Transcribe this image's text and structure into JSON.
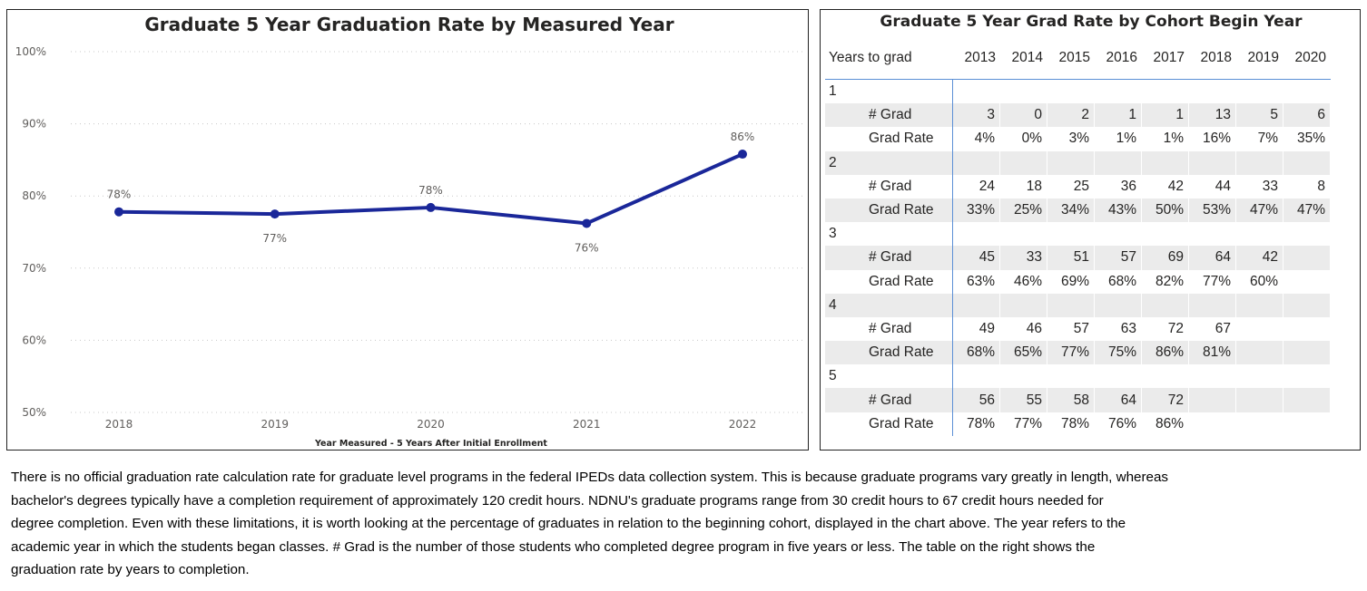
{
  "chart_data": {
    "type": "line",
    "title": "Graduate 5 Year Graduation Rate by Measured Year",
    "xlabel": "Year Measured - 5 Years After Initial Enrollment",
    "ylabel": "",
    "categories": [
      "2018",
      "2019",
      "2020",
      "2021",
      "2022"
    ],
    "values": [
      77.8,
      77.5,
      78.4,
      76.2,
      85.8
    ],
    "data_labels": [
      "78%",
      "77%",
      "78%",
      "76%",
      "86%"
    ],
    "label_positions": [
      "above",
      "below",
      "above",
      "below",
      "above"
    ],
    "ylim": [
      50,
      100
    ],
    "yticks": [
      "50%",
      "60%",
      "70%",
      "80%",
      "90%",
      "100%"
    ],
    "ytick_values": [
      50,
      60,
      70,
      80,
      90,
      100
    ],
    "grid": true,
    "line_color": "#1a2799"
  },
  "table": {
    "title": "Graduate 5 Year Grad Rate by Cohort Begin Year",
    "row_header": "Years to grad",
    "columns": [
      "2013",
      "2014",
      "2015",
      "2016",
      "2017",
      "2018",
      "2019",
      "2020"
    ],
    "groups": [
      {
        "label": "1",
        "rows": [
          {
            "label": "# Grad",
            "values": [
              "3",
              "0",
              "2",
              "1",
              "1",
              "13",
              "5",
              "6"
            ]
          },
          {
            "label": "Grad Rate",
            "values": [
              "4%",
              "0%",
              "3%",
              "1%",
              "1%",
              "16%",
              "7%",
              "35%"
            ]
          }
        ]
      },
      {
        "label": "2",
        "rows": [
          {
            "label": "# Grad",
            "values": [
              "24",
              "18",
              "25",
              "36",
              "42",
              "44",
              "33",
              "8"
            ]
          },
          {
            "label": "Grad Rate",
            "values": [
              "33%",
              "25%",
              "34%",
              "43%",
              "50%",
              "53%",
              "47%",
              "47%"
            ]
          }
        ]
      },
      {
        "label": "3",
        "rows": [
          {
            "label": "# Grad",
            "values": [
              "45",
              "33",
              "51",
              "57",
              "69",
              "64",
              "42",
              ""
            ]
          },
          {
            "label": "Grad Rate",
            "values": [
              "63%",
              "46%",
              "69%",
              "68%",
              "82%",
              "77%",
              "60%",
              ""
            ]
          }
        ]
      },
      {
        "label": "4",
        "rows": [
          {
            "label": "# Grad",
            "values": [
              "49",
              "46",
              "57",
              "63",
              "72",
              "67",
              "",
              ""
            ]
          },
          {
            "label": "Grad Rate",
            "values": [
              "68%",
              "65%",
              "77%",
              "75%",
              "86%",
              "81%",
              "",
              ""
            ]
          }
        ]
      },
      {
        "label": "5",
        "rows": [
          {
            "label": "# Grad",
            "values": [
              "56",
              "55",
              "58",
              "64",
              "72",
              "",
              "",
              ""
            ]
          },
          {
            "label": "Grad Rate",
            "values": [
              "78%",
              "77%",
              "78%",
              "76%",
              "86%",
              "",
              "",
              ""
            ]
          }
        ]
      }
    ]
  },
  "description_lines": [
    "There is no official graduation rate calculation rate for graduate level programs in the federal IPEDs data collection system.  This is because graduate programs vary greatly in length, whereas",
    "bachelor's degrees typically have a completion requirement of approximately 120 credit hours.  NDNU's graduate programs range from 30 credit hours to 67 credit hours needed for",
    "degree completion.   Even with these limitations, it is worth looking at the percentage of graduates in relation to the beginning cohort, displayed in the chart above.  The year refers to the",
    "academic year in which the students began classes.  # Grad is the number of those students who completed degree program in five years or less.  The table on the right shows the",
    "graduation rate by years to completion."
  ]
}
